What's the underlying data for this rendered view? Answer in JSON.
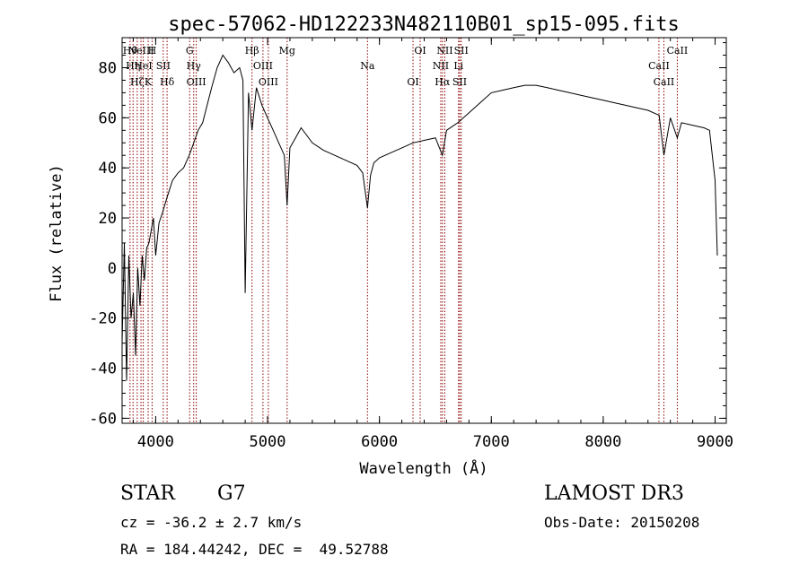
{
  "chart_data": {
    "type": "line",
    "title": "spec-57062-HD122233N482110B01_sp15-095.fits",
    "xlabel": "Wavelength (Å)",
    "ylabel": "Flux (relative)",
    "xlim": [
      3700,
      9100
    ],
    "ylim": [
      -62,
      92
    ],
    "xticks": [
      4000,
      5000,
      6000,
      7000,
      8000,
      9000
    ],
    "yticks": [
      -60,
      -40,
      -20,
      0,
      20,
      40,
      60,
      80
    ],
    "grid": false,
    "legend": "none",
    "line_color": "#000000",
    "marker_color": "#8b0000",
    "series": [
      {
        "x": [
          3700,
          3720,
          3740,
          3760,
          3780,
          3800,
          3820,
          3840,
          3860,
          3880,
          3900,
          3920,
          3940,
          3960,
          3980,
          4000,
          4030,
          4060,
          4100,
          4150,
          4200,
          4250,
          4300,
          4340,
          4380,
          4420,
          4460,
          4500,
          4550,
          4600,
          4650,
          4700,
          4750,
          4780,
          4800,
          4830,
          4861,
          4900,
          4950,
          5000,
          5050,
          5100,
          5150,
          5175,
          5200,
          5250,
          5300,
          5400,
          5500,
          5600,
          5700,
          5800,
          5850,
          5893,
          5920,
          5950,
          6000,
          6100,
          6200,
          6300,
          6400,
          6500,
          6563,
          6600,
          6700,
          6800,
          6900,
          7000,
          7100,
          7200,
          7300,
          7400,
          7500,
          7600,
          7700,
          7800,
          7900,
          8000,
          8100,
          8200,
          8300,
          8400,
          8500,
          8542,
          8600,
          8662,
          8700,
          8800,
          8900,
          8950,
          9000,
          9020
        ],
        "y": [
          -30,
          10,
          -45,
          5,
          -20,
          -10,
          -35,
          0,
          -15,
          5,
          -5,
          8,
          10,
          15,
          20,
          5,
          18,
          22,
          28,
          35,
          38,
          40,
          45,
          50,
          55,
          58,
          65,
          72,
          80,
          85,
          82,
          78,
          80,
          75,
          -10,
          70,
          55,
          72,
          65,
          60,
          55,
          50,
          45,
          25,
          48,
          52,
          56,
          50,
          47,
          45,
          43,
          41,
          38,
          24,
          37,
          42,
          44,
          46,
          48,
          50,
          51,
          52,
          45,
          55,
          58,
          62,
          66,
          70,
          71,
          72,
          73,
          73,
          72,
          71,
          70,
          69,
          68,
          67,
          66,
          65,
          64,
          63,
          61,
          45,
          60,
          52,
          58,
          57,
          56,
          55,
          35,
          5
        ]
      }
    ],
    "lines": [
      {
        "x": 3771,
        "labels": [
          "Hθ"
        ]
      },
      {
        "x": 3798,
        "labels": [
          "Hη"
        ]
      },
      {
        "x": 3835,
        "labels": [
          "Hζ"
        ]
      },
      {
        "x": 3869,
        "labels": [
          "NeIII"
        ]
      },
      {
        "x": 3889,
        "labels": [
          "HeI"
        ]
      },
      {
        "x": 3933,
        "labels": [
          "K"
        ]
      },
      {
        "x": 3968,
        "labels": [
          "H"
        ]
      },
      {
        "x": 4068,
        "labels": [
          "SII"
        ]
      },
      {
        "x": 4102,
        "labels": [
          "Hδ"
        ]
      },
      {
        "x": 4304,
        "labels": [
          "G"
        ]
      },
      {
        "x": 4340,
        "labels": [
          "Hγ"
        ]
      },
      {
        "x": 4363,
        "labels": [
          "OIII"
        ]
      },
      {
        "x": 4861,
        "labels": [
          "Hβ"
        ]
      },
      {
        "x": 4959,
        "labels": [
          "OIII"
        ]
      },
      {
        "x": 5007,
        "labels": [
          "OIII"
        ]
      },
      {
        "x": 5175,
        "labels": [
          "Mg"
        ]
      },
      {
        "x": 5893,
        "labels": [
          "Na"
        ]
      },
      {
        "x": 6300,
        "labels": [
          "OI"
        ]
      },
      {
        "x": 6364,
        "labels": [
          "OI"
        ]
      },
      {
        "x": 6548,
        "labels": [
          "NII"
        ]
      },
      {
        "x": 6563,
        "labels": [
          "Hα"
        ]
      },
      {
        "x": 6584,
        "labels": [
          "NII"
        ]
      },
      {
        "x": 6707,
        "labels": [
          "Li"
        ]
      },
      {
        "x": 6717,
        "labels": [
          "SII"
        ]
      },
      {
        "x": 6731,
        "labels": [
          "SII"
        ]
      },
      {
        "x": 8498,
        "labels": [
          "CaII"
        ]
      },
      {
        "x": 8542,
        "labels": [
          "CaII"
        ]
      },
      {
        "x": 8662,
        "labels": [
          "CaII"
        ]
      }
    ]
  },
  "info": {
    "class": "STAR",
    "subclass": "G7",
    "survey": "LAMOST DR3",
    "cz": "cz = -36.2 ± 2.7 km/s",
    "obs_date": "Obs-Date: 20150208",
    "coords": "RA = 184.44242, DEC =  49.52788"
  }
}
